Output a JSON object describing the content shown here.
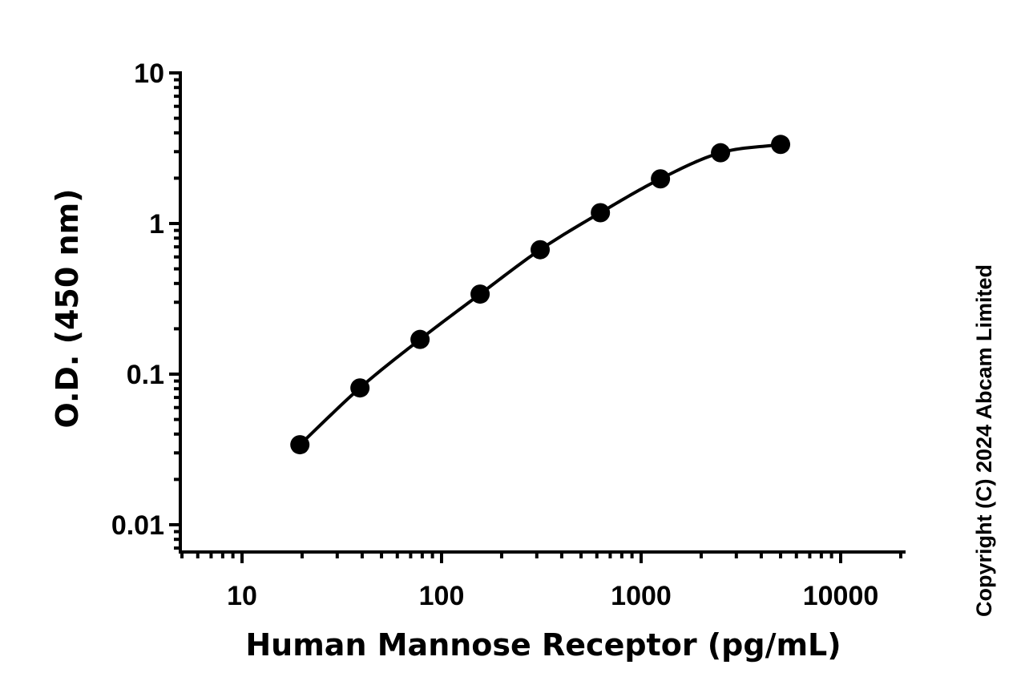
{
  "chart_data": {
    "type": "scatter",
    "xlabel": "Human Mannose Receptor (pg/mL)",
    "ylabel": "O.D. (450 nm)",
    "x_scale": "log",
    "y_scale": "log",
    "xlim": [
      5,
      20000
    ],
    "ylim": [
      0.007,
      10
    ],
    "x_ticks": [
      10,
      100,
      1000,
      10000
    ],
    "x_tick_labels": [
      "10",
      "100",
      "1000",
      "10000"
    ],
    "y_ticks": [
      0.01,
      0.1,
      1,
      10
    ],
    "y_tick_labels": [
      "0.01",
      "0.1",
      "1",
      "10"
    ],
    "grid": false,
    "legend": "none",
    "fit_curve": true,
    "series": [
      {
        "x": [
          19.5,
          39,
          78,
          156,
          312,
          625,
          1250,
          2500,
          5000
        ],
        "y": [
          0.034,
          0.081,
          0.17,
          0.34,
          0.67,
          1.18,
          1.98,
          2.95,
          3.35
        ]
      }
    ]
  },
  "watermark": "Copyright (C) 2024 Abcam Limited",
  "colors": {
    "marks": "#000000",
    "background": "#ffffff"
  }
}
